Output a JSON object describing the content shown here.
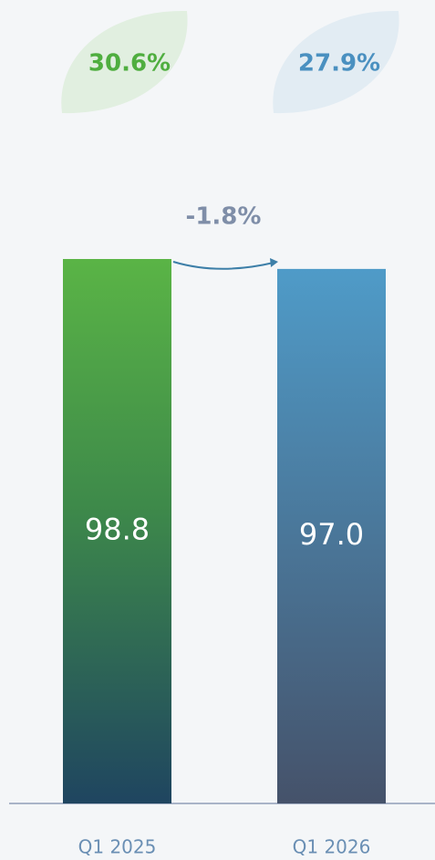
{
  "chart_data": {
    "type": "bar",
    "categories": [
      "Q1 2025",
      "Q1 2026"
    ],
    "values": [
      98.8,
      97.0
    ],
    "value_labels": [
      "98.8",
      "97.0"
    ],
    "colors": [
      "#5ab446",
      "#4f9bc8"
    ],
    "leaf_values": [
      30.6,
      27.9
    ],
    "leaf_labels": [
      "30.6%",
      "27.9%"
    ],
    "leaf_colors": [
      "#4fae3f",
      "#4a90c0"
    ],
    "change": {
      "value": -1.8,
      "label": "-1.8%"
    }
  }
}
